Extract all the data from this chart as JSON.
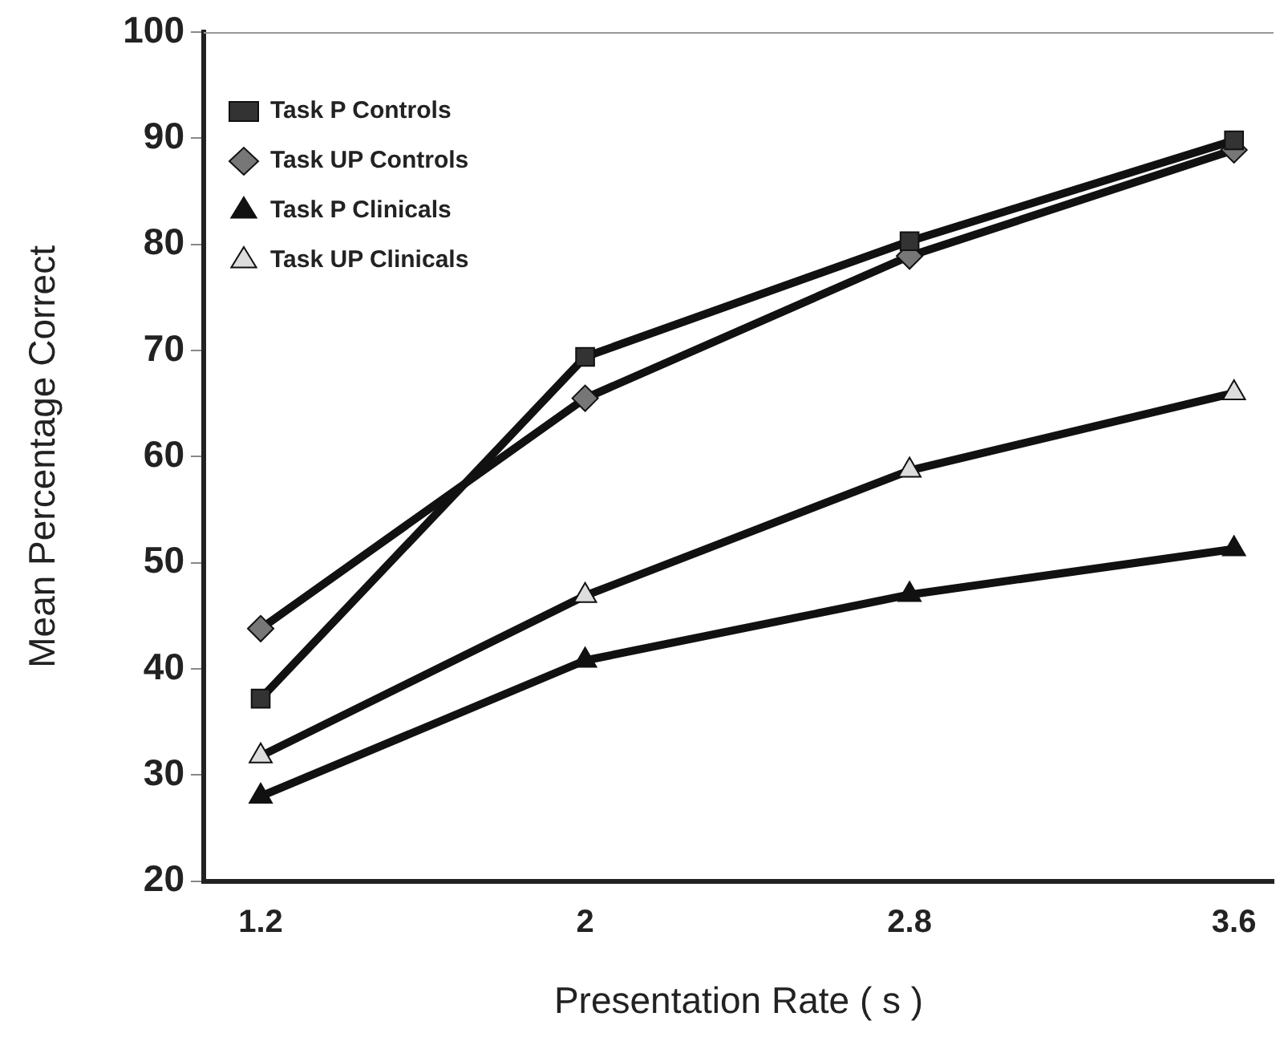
{
  "chart_data": {
    "type": "line",
    "xlabel": "Presentation Rate ( s )",
    "ylabel": "Mean Percentage Correct",
    "categories": [
      "1.2",
      "2",
      "2.8",
      "3.6"
    ],
    "series": [
      {
        "name": "Task P Controls",
        "color": "#333333",
        "marker": "square",
        "values": [
          37.2,
          69.4,
          80.3,
          89.8
        ]
      },
      {
        "name": "Task UP Controls",
        "color": "#777777",
        "marker": "diamond",
        "values": [
          43.8,
          65.5,
          78.9,
          88.9
        ]
      },
      {
        "name": "Task P Clinicals",
        "color": "#111111",
        "marker": "triangle",
        "values": [
          28,
          40.8,
          47,
          51.3
        ]
      },
      {
        "name": "Task UP Clinicals",
        "color": "#dddddd",
        "marker": "triangle",
        "values": [
          31.8,
          46.9,
          58.7,
          66
        ]
      }
    ],
    "ylim": [
      20,
      100
    ],
    "yticks": [
      20,
      30,
      40,
      50,
      60,
      70,
      80,
      90,
      100
    ],
    "grid": false,
    "legend": "top left",
    "line_style": "solid"
  }
}
